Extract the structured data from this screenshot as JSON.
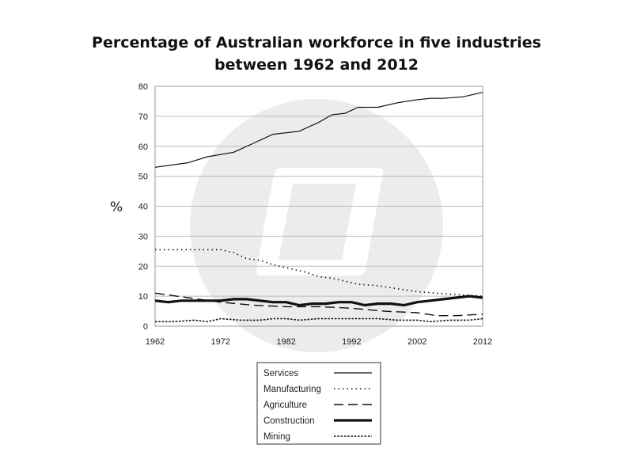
{
  "chart_data": {
    "type": "line",
    "title_line1": "Percentage of Australian workforce in five industries",
    "title_line2": "between 1962 and 2012",
    "xlabel": "",
    "ylabel": "%",
    "xlim": [
      1962,
      2012
    ],
    "ylim": [
      0,
      80
    ],
    "x_ticks": [
      1962,
      1972,
      1982,
      1992,
      2002,
      2012
    ],
    "y_ticks": [
      0,
      10,
      20,
      30,
      40,
      50,
      60,
      70,
      80
    ],
    "grid": true,
    "legend_position": "bottom",
    "series": [
      {
        "name": "Services",
        "style": "solid-thin",
        "x": [
          1962,
          1967,
          1970,
          1974,
          1977,
          1980,
          1984,
          1987,
          1989,
          1991,
          1993,
          1996,
          1999,
          2002,
          2004,
          2006,
          2009,
          2012
        ],
        "values": [
          53,
          54.5,
          56.5,
          58,
          61,
          64,
          65,
          68,
          70.5,
          71,
          73,
          73,
          74.5,
          75.5,
          76,
          76,
          76.5,
          78
        ]
      },
      {
        "name": "Manufacturing",
        "style": "dotted",
        "x": [
          1962,
          1965,
          1968,
          1972,
          1974,
          1976,
          1978,
          1980,
          1982,
          1985,
          1987,
          1989,
          1991,
          1993,
          1996,
          1999,
          2002,
          2005,
          2008,
          2012
        ],
        "values": [
          25.5,
          25.5,
          25.5,
          25.5,
          24.5,
          22.5,
          22,
          20.5,
          19.5,
          18,
          16.5,
          16,
          15,
          14,
          13.5,
          12.5,
          11.5,
          11,
          10.5,
          10
        ]
      },
      {
        "name": "Agriculture",
        "style": "dashed",
        "x": [
          1962,
          1967,
          1972,
          1977,
          1982,
          1987,
          1992,
          1997,
          2002,
          2005,
          2008,
          2012
        ],
        "values": [
          11,
          9.5,
          8,
          7,
          6.5,
          6.5,
          6,
          5,
          4.5,
          3.5,
          3.5,
          4
        ]
      },
      {
        "name": "Construction",
        "style": "solid-thick",
        "x": [
          1962,
          1964,
          1966,
          1968,
          1970,
          1972,
          1974,
          1976,
          1978,
          1980,
          1982,
          1984,
          1986,
          1988,
          1990,
          1992,
          1994,
          1996,
          1998,
          2000,
          2002,
          2004,
          2006,
          2008,
          2010,
          2012
        ],
        "values": [
          8.5,
          8,
          8.5,
          8.5,
          8.5,
          8.5,
          9,
          9,
          8.5,
          8,
          8,
          7,
          7.5,
          7.5,
          8,
          8,
          7,
          7.5,
          7.5,
          7,
          8,
          8.5,
          9,
          9.5,
          10,
          9.5
        ]
      },
      {
        "name": "Mining",
        "style": "fine-dashed",
        "x": [
          1962,
          1965,
          1968,
          1970,
          1972,
          1975,
          1978,
          1980,
          1982,
          1984,
          1987,
          1990,
          1993,
          1996,
          1999,
          2002,
          2004,
          2007,
          2010,
          2012
        ],
        "values": [
          1.5,
          1.5,
          2,
          1.5,
          2.5,
          2,
          2,
          2.5,
          2.5,
          2,
          2.5,
          2.5,
          2.5,
          2.5,
          2,
          2,
          1.5,
          2,
          2,
          2.5
        ]
      }
    ]
  }
}
